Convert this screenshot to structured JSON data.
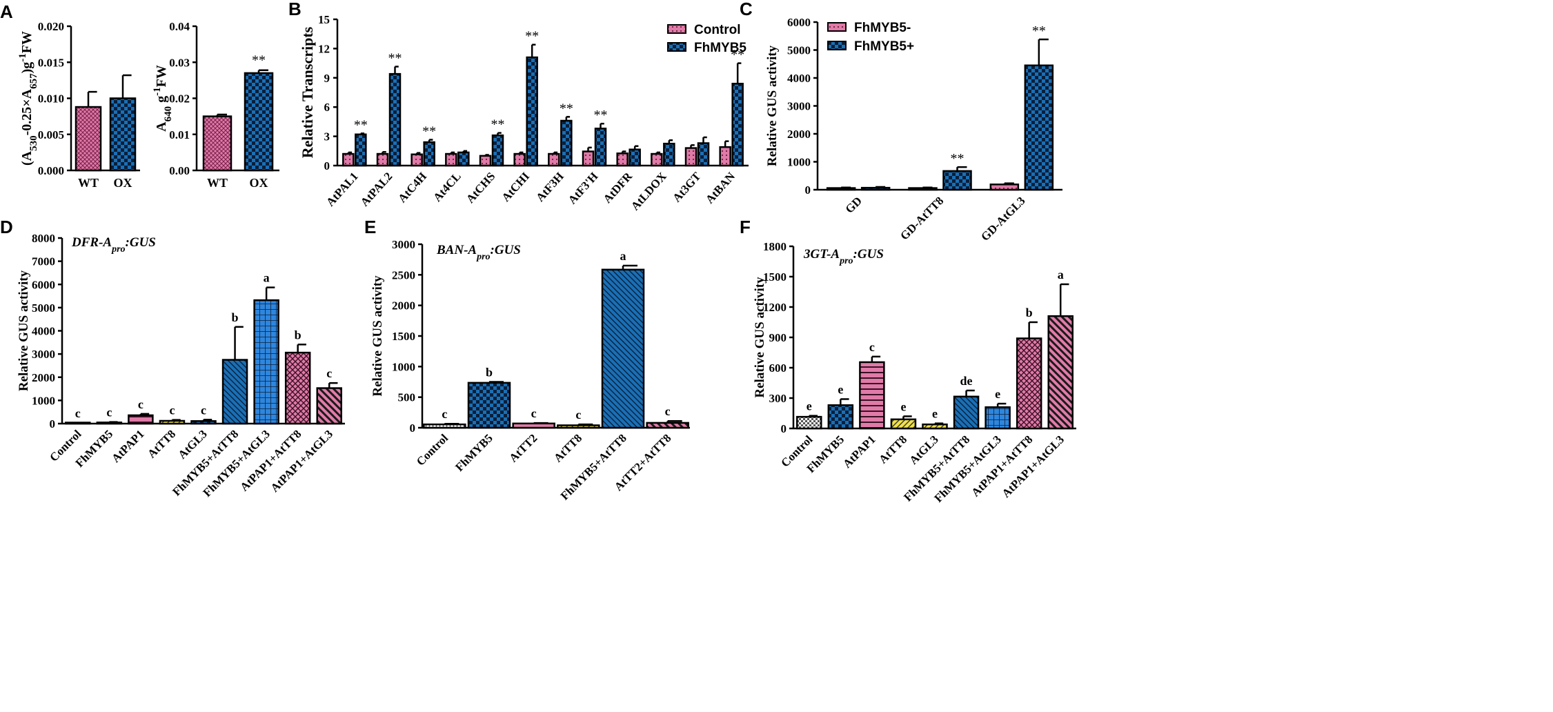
{
  "colors": {
    "pink": "#e07ba8",
    "blue": "#1a6fb5",
    "blue_grid": "#2e86de",
    "yellow": "#f0e048",
    "white": "#ffffff",
    "black": "#000000"
  },
  "significance_mark": "**",
  "chart_data": [
    {
      "panel": "A",
      "type": "bar",
      "panel_label": "A",
      "ylabel_html": "(A<tspan baseline-shift='sub' font-size='15'>530</tspan>-0.25×A<tspan baseline-shift='sub' font-size='15'>657</tspan>)g<tspan baseline-shift='super' font-size='15'>-1</tspan>FW",
      "ylim": [
        0,
        0.02
      ],
      "ticks": [
        "0.000",
        "0.005",
        "0.010",
        "0.015",
        "0.020"
      ],
      "categories": [
        "WT",
        "OX"
      ],
      "values": [
        0.0088,
        0.01
      ],
      "errors": [
        0.0021,
        0.0032
      ],
      "patterns": [
        "pink_cross",
        "blue_check"
      ],
      "annotations": [
        "",
        ""
      ]
    },
    {
      "panel": "A2",
      "type": "bar",
      "ylabel_html": "A<tspan baseline-shift='sub' font-size='15'>640</tspan> g<tspan baseline-shift='super' font-size='15'>-1</tspan>FW",
      "ylim": [
        0,
        0.04
      ],
      "ticks": [
        "0.00",
        "0.01",
        "0.02",
        "0.03",
        "0.04"
      ],
      "categories": [
        "WT",
        "OX"
      ],
      "values": [
        0.015,
        0.027
      ],
      "errors": [
        0.0005,
        0.0008
      ],
      "patterns": [
        "pink_cross",
        "blue_check"
      ],
      "annotations": [
        "",
        "**"
      ]
    },
    {
      "panel": "B",
      "type": "bar",
      "panel_label": "B",
      "ylabel": "Relative Transcripts",
      "ylim": [
        0,
        15
      ],
      "ticks": [
        "0",
        "3",
        "6",
        "9",
        "12",
        "15"
      ],
      "categories": [
        "AtPAL1",
        "AtPAL2",
        "AtC4H",
        "At4CL",
        "AtCHS",
        "AtCHI",
        "AtF3H",
        "AtF3'H",
        "AtDFR",
        "AtLDOX",
        "At3GT",
        "AtBAN"
      ],
      "series": [
        {
          "name": "Control",
          "pattern": "pink_dot",
          "values": [
            1.2,
            1.2,
            1.15,
            1.2,
            1.0,
            1.2,
            1.2,
            1.45,
            1.25,
            1.2,
            1.8,
            1.9
          ],
          "errors": [
            0.15,
            0.2,
            0.15,
            0.15,
            0.1,
            0.15,
            0.15,
            0.4,
            0.2,
            0.15,
            0.3,
            0.6
          ]
        },
        {
          "name": "FhMYB5",
          "pattern": "blue_check",
          "values": [
            3.2,
            9.4,
            2.4,
            1.35,
            3.1,
            11.1,
            4.6,
            3.8,
            1.65,
            2.25,
            2.3,
            8.4
          ],
          "errors": [
            0.1,
            0.75,
            0.25,
            0.15,
            0.25,
            1.3,
            0.4,
            0.5,
            0.35,
            0.35,
            0.6,
            2.1
          ]
        }
      ],
      "annotations": [
        "**",
        "**",
        "**",
        "",
        "**",
        "**",
        "**",
        "**",
        "",
        "",
        "",
        "**"
      ]
    },
    {
      "panel": "C",
      "type": "bar",
      "panel_label": "C",
      "ylabel": "Relative GUS activity",
      "ylim": [
        0,
        6000
      ],
      "ticks": [
        "0",
        "1000",
        "2000",
        "3000",
        "4000",
        "5000",
        "6000"
      ],
      "categories": [
        "GD",
        "GD-AtTT8",
        "GD-AtGL3"
      ],
      "series": [
        {
          "name": "FhMYB5-",
          "pattern": "pink_dot",
          "values": [
            60,
            60,
            190
          ],
          "errors": [
            20,
            20,
            40
          ]
        },
        {
          "name": "FhMYB5+",
          "pattern": "blue_check",
          "values": [
            70,
            670,
            4450
          ],
          "errors": [
            30,
            140,
            930
          ]
        }
      ],
      "annotations": [
        "",
        "**",
        "**"
      ]
    },
    {
      "panel": "D",
      "type": "bar",
      "panel_label": "D",
      "title_html": "DFR-A<tspan baseline-shift='sub' font-size='14'>pro</tspan>:GUS",
      "ylabel": "Relative GUS activity",
      "ylim": [
        0,
        8000
      ],
      "ticks": [
        "0",
        "1000",
        "2000",
        "3000",
        "4000",
        "5000",
        "6000",
        "7000",
        "8000"
      ],
      "categories": [
        "Control",
        "FhMYB5",
        "AtPAP1",
        "AtTT8",
        "AtGL3",
        "FhMYB5+AtTT8",
        "FhMYB5+AtGL3",
        "AtPAP1+AtTT8",
        "AtPAP1+AtGL3"
      ],
      "values": [
        20,
        50,
        360,
        120,
        110,
        2750,
        5320,
        3060,
        1530
      ],
      "errors": [
        10,
        20,
        60,
        40,
        60,
        1420,
        550,
        350,
        220
      ],
      "patterns": [
        "white_dot",
        "blue_check",
        "pink_hline",
        "yellow_diag",
        "blue_check",
        "blue_diag",
        "blue_grid",
        "pink_grid",
        "pink_bdiag"
      ],
      "letters": [
        "c",
        "c",
        "c",
        "c",
        "c",
        "b",
        "a",
        "b",
        "c"
      ]
    },
    {
      "panel": "E",
      "type": "bar",
      "panel_label": "E",
      "title_html": "BAN-A<tspan baseline-shift='sub' font-size='14'>pro</tspan>:GUS",
      "ylabel": "Relative GUS activity",
      "ylim": [
        0,
        3000
      ],
      "ticks": [
        "0",
        "500",
        "1000",
        "1500",
        "2000",
        "2500",
        "3000"
      ],
      "categories": [
        "Control",
        "FhMYB5",
        "AtTT2",
        "AtTT8",
        "FhMYB5+AtTT8",
        "AtTT2+AtTT8"
      ],
      "values": [
        55,
        735,
        70,
        40,
        2585,
        80
      ],
      "errors": [
        10,
        15,
        8,
        15,
        65,
        30
      ],
      "patterns": [
        "white_dot",
        "blue_check",
        "pink_hline",
        "yellow_diag",
        "blue_diag",
        "pink_bdiag"
      ],
      "letters": [
        "c",
        "b",
        "c",
        "c",
        "a",
        "c"
      ]
    },
    {
      "panel": "F",
      "type": "bar",
      "panel_label": "F",
      "title_html": "3GT-A<tspan baseline-shift='sub' font-size='14'>pro</tspan>:GUS",
      "ylabel": "Relative GUS activity",
      "ylim": [
        0,
        1800
      ],
      "ticks": [
        "0",
        "300",
        "600",
        "900",
        "1200",
        "1500",
        "1800"
      ],
      "categories": [
        "Control",
        "FhMYB5",
        "AtPAP1",
        "AtTT8",
        "AtGL3",
        "FhMYB5+AtTT8",
        "FhMYB5+AtGL3",
        "AtPAP1+AtTT8",
        "AtPAP1+AtGL3"
      ],
      "values": [
        115,
        230,
        655,
        90,
        40,
        315,
        210,
        890,
        1110
      ],
      "errors": [
        10,
        60,
        55,
        30,
        10,
        60,
        35,
        160,
        315
      ],
      "patterns": [
        "white_check",
        "blue_check",
        "pink_hline",
        "yellow_diag",
        "yellow_diag",
        "blue_diag",
        "blue_grid",
        "pink_grid",
        "pink_bdiag"
      ],
      "letters": [
        "e",
        "e",
        "c",
        "e",
        "e",
        "de",
        "e",
        "b",
        "a"
      ]
    }
  ]
}
